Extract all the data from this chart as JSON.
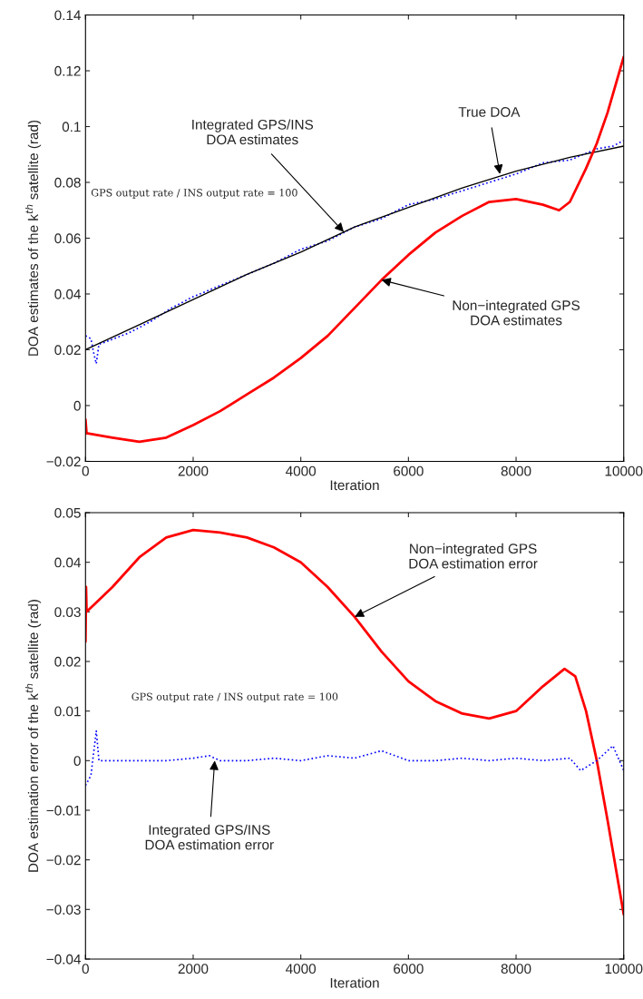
{
  "chart_data": [
    {
      "type": "line",
      "xlabel": "Iteration",
      "ylabel": "DOA estimates of the k$^{th}$ satellite (rad)",
      "xlim": [
        0,
        10000
      ],
      "xticks": [
        0,
        2000,
        4000,
        6000,
        8000,
        10000
      ],
      "ylim": [
        -0.02,
        0.14
      ],
      "yticks": [
        {
          "value": -0.02,
          "label": "−0.02"
        },
        0,
        0.02,
        0.04,
        0.06,
        0.08,
        0.1,
        0.12,
        0.14
      ],
      "grid": false,
      "series": [
        {
          "color": "#0000ff",
          "line_style": "dotted",
          "x": [
            0,
            100,
            150,
            200,
            250,
            400,
            800,
            1200,
            1600,
            2000,
            2500,
            3000,
            3500,
            4000,
            4500,
            5000,
            5500,
            6000,
            6500,
            7000,
            7500,
            8000,
            8500,
            9000,
            9500,
            9800,
            10000
          ],
          "values": [
            0.025,
            0.024,
            0.019,
            0.015,
            0.022,
            0.023,
            0.026,
            0.03,
            0.035,
            0.039,
            0.043,
            0.047,
            0.051,
            0.056,
            0.059,
            0.064,
            0.067,
            0.072,
            0.074,
            0.077,
            0.08,
            0.083,
            0.087,
            0.088,
            0.092,
            0.093,
            0.095
          ]
        },
        {
          "color": "#000000",
          "line_style": "solid",
          "x": [
            0,
            1000,
            2000,
            3000,
            4000,
            5000,
            6000,
            7000,
            8000,
            9000,
            10000
          ],
          "values": [
            0.02,
            0.029,
            0.038,
            0.047,
            0.055,
            0.064,
            0.071,
            0.078,
            0.084,
            0.089,
            0.093
          ]
        },
        {
          "color": "#ff0000",
          "line_style": "solid",
          "x": [
            0,
            20,
            40,
            500,
            1000,
            1500,
            2000,
            2500,
            3000,
            3500,
            4000,
            4500,
            5000,
            5500,
            6000,
            6500,
            7000,
            7500,
            8000,
            8500,
            8800,
            9000,
            9300,
            9500,
            9700,
            10000
          ],
          "values": [
            -0.005,
            -0.01,
            -0.01,
            -0.0115,
            -0.013,
            -0.0115,
            -0.007,
            -0.002,
            0.004,
            0.01,
            0.017,
            0.025,
            0.035,
            0.045,
            0.054,
            0.062,
            0.068,
            0.073,
            0.074,
            0.072,
            0.07,
            0.073,
            0.085,
            0.094,
            0.105,
            0.125
          ]
        }
      ],
      "annotations": [
        {
          "text": "Integrated GPS/INS\nDOA estimates",
          "x": 4800,
          "y": 0.0622
        },
        {
          "text": "True DOA",
          "x": 7700,
          "y": 0.083
        },
        {
          "text": "Non−integrated GPS\nDOA estimates",
          "x": 5500,
          "y": 0.045
        },
        "GPS output rate / INS output rate = 100"
      ]
    },
    {
      "type": "line",
      "xlabel": "Iteration",
      "ylabel": "DOA estimation error of the k$^{th}$ satellite (rad)",
      "xlim": [
        0,
        10000
      ],
      "xticks": [
        0,
        2000,
        4000,
        6000,
        8000,
        10000
      ],
      "ylim": [
        -0.04,
        0.05
      ],
      "yticks": [
        {
          "value": -0.04,
          "label": "−0.04"
        },
        {
          "value": -0.03,
          "label": "−0.03"
        },
        {
          "value": -0.02,
          "label": "−0.02"
        },
        {
          "value": -0.01,
          "label": "−0.01"
        },
        0,
        0.01,
        0.02,
        0.03,
        0.04,
        0.05
      ],
      "grid": false,
      "series": [
        {
          "color": "#ff0000",
          "line_style": "solid",
          "x": [
            0,
            10,
            20,
            500,
            1000,
            1500,
            2000,
            2500,
            3000,
            3500,
            4000,
            4500,
            5000,
            5500,
            6000,
            6500,
            7000,
            7500,
            8000,
            8500,
            8900,
            9100,
            9300,
            9500,
            9700,
            10000
          ],
          "values": [
            0.024,
            0.035,
            0.03,
            0.035,
            0.041,
            0.045,
            0.0465,
            0.046,
            0.045,
            0.043,
            0.04,
            0.035,
            0.029,
            0.022,
            0.016,
            0.012,
            0.0095,
            0.0085,
            0.01,
            0.015,
            0.0185,
            0.017,
            0.01,
            0.0,
            -0.012,
            -0.031
          ]
        },
        {
          "color": "#0000ff",
          "line_style": "dotted",
          "x": [
            0,
            100,
            200,
            250,
            500,
            1000,
            1500,
            2000,
            2300,
            2500,
            3000,
            3500,
            4000,
            4500,
            5000,
            5500,
            6000,
            6500,
            7000,
            7500,
            8000,
            8500,
            9000,
            9200,
            9500,
            9800,
            10000
          ],
          "values": [
            -0.005,
            -0.003,
            0.006,
            0.0,
            0.0,
            0.0,
            0.0,
            0.0005,
            0.001,
            0.0,
            0.0,
            0.0005,
            0.0,
            0.001,
            0.0005,
            0.002,
            0.0,
            0.0,
            0.0005,
            0.0,
            0.0005,
            0.0,
            0.0005,
            -0.002,
            0.0,
            0.003,
            -0.002
          ]
        }
      ],
      "annotations": [
        {
          "text": "Non−integrated GPS\nDOA estimation error",
          "x": 5000,
          "y": 0.029
        },
        {
          "text": "Integrated GPS/INS\nDOA estimation error",
          "x": 2400,
          "y": 0.0
        },
        "GPS output rate / INS output rate = 100"
      ]
    }
  ]
}
